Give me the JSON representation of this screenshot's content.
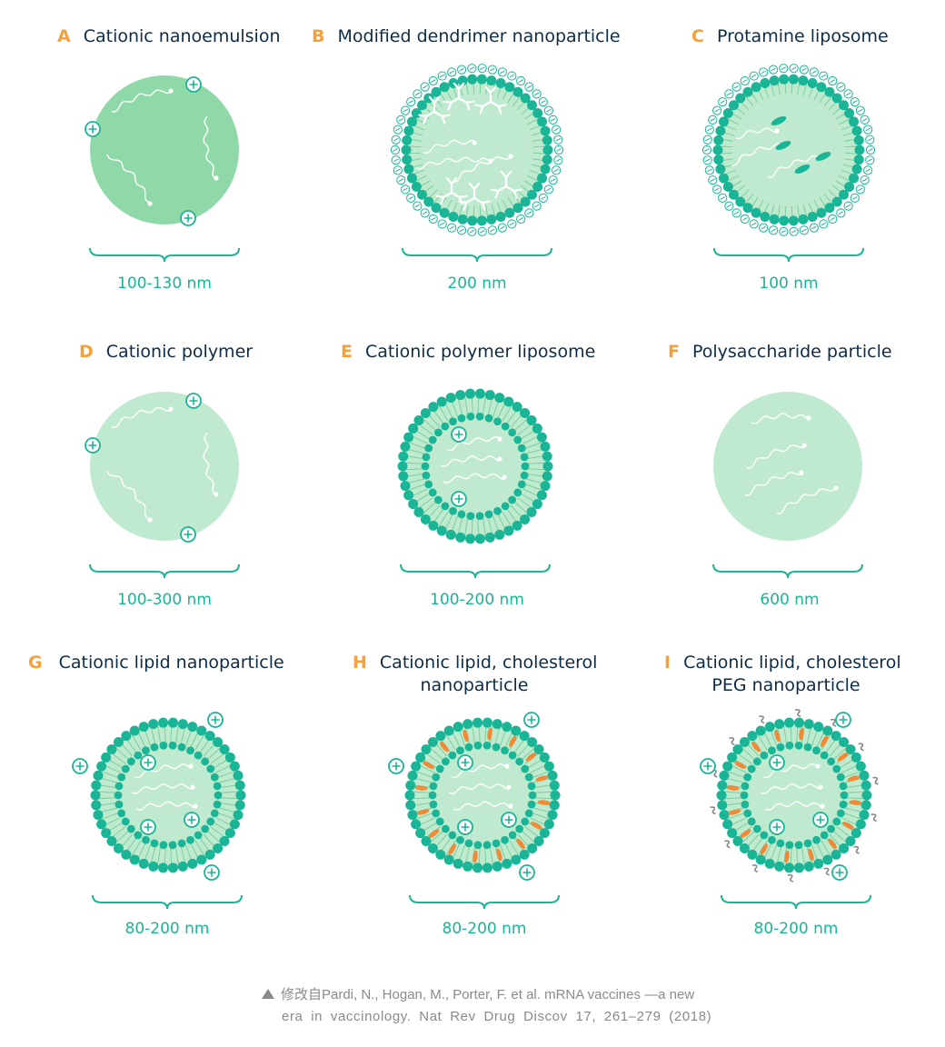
{
  "colors": {
    "letter": "#F5A13B",
    "title": "#0E2C45",
    "accent": "#19B596",
    "light_fill": "#BFEACF",
    "mid_fill": "#8FD9A8",
    "orange": "#F28A35",
    "gray": "#888888"
  },
  "panels": [
    {
      "letter": "A",
      "title": [
        "Cationic nanoemulsion"
      ],
      "size": "100-130 nm"
    },
    {
      "letter": "B",
      "title": [
        "Modified dendrimer nanoparticle"
      ],
      "size": "200 nm"
    },
    {
      "letter": "C",
      "title": [
        "Protamine liposome"
      ],
      "size": "100 nm"
    },
    {
      "letter": "D",
      "title": [
        "Cationic polymer"
      ],
      "size": "100-300 nm"
    },
    {
      "letter": "E",
      "title": [
        "Cationic polymer liposome"
      ],
      "size": "100-200 nm"
    },
    {
      "letter": "F",
      "title": [
        "Polysaccharide particle"
      ],
      "size": "600 nm"
    },
    {
      "letter": "G",
      "title": [
        "Cationic lipid nanoparticle"
      ],
      "size": "80-200 nm"
    },
    {
      "letter": "H",
      "title": [
        "Cationic lipid, cholesterol",
        "nanoparticle"
      ],
      "size": "80-200 nm"
    },
    {
      "letter": "I",
      "title": [
        "Cationic lipid, cholesterol",
        "PEG nanoparticle"
      ],
      "size": "80-200 nm"
    }
  ],
  "caption": {
    "line1": "修改自Pardi, N., Hogan, M., Porter, F. et al. mRNA vaccines —a new",
    "line2": "era in vaccinology. Nat Rev Drug Discov 17, 261–279 (2018)"
  }
}
